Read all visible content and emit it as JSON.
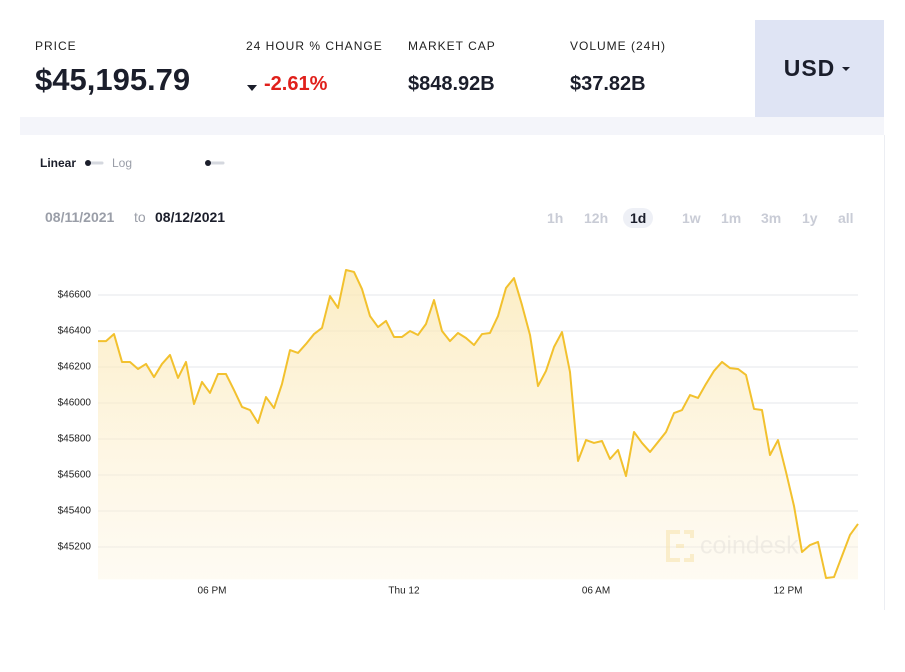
{
  "header": {
    "stats": [
      {
        "label": "PRICE",
        "value": "$45,195.79"
      },
      {
        "label": "24 HOUR % CHANGE",
        "value": "-2.61%"
      },
      {
        "label": "MARKET CAP",
        "value": "$848.92B"
      },
      {
        "label": "VOLUME (24H)",
        "value": "$37.82B"
      }
    ],
    "currency": "USD"
  },
  "controls": {
    "scale": "Linear",
    "scale_alt": "Log",
    "date_from": "08/11/2021",
    "date_sep": "to",
    "date_to": "08/12/2021",
    "ranges": [
      "1h",
      "12h",
      "1d",
      "1w",
      "1m",
      "3m",
      "1y",
      "all"
    ],
    "selected_range": 2
  },
  "chart_data": {
    "type": "line",
    "color": "#f2c12e",
    "watermark": "coindesk",
    "x": [
      14.4375,
      14.6875,
      14.9375,
      15.1875,
      15.4375,
      15.6875,
      15.9375,
      16.1875,
      16.4375,
      16.6875,
      16.9375,
      17.1875,
      17.4375,
      17.6875,
      17.9375,
      18.1875,
      18.4375,
      18.6875,
      18.9375,
      19.1875,
      19.4375,
      19.6875,
      19.9375,
      20.1875,
      20.4375,
      20.6875,
      20.9375,
      21.1875,
      21.4375,
      21.6875,
      21.9375,
      22.1875,
      22.4375,
      22.6875,
      22.9375,
      23.1875,
      23.4375,
      23.6875,
      23.9375,
      24.1875,
      24.4375,
      24.6875,
      24.9375,
      25.1875,
      25.4375,
      25.6875,
      25.9375,
      26.1875,
      26.4375,
      26.6875,
      26.9375,
      27.1875,
      27.4375,
      27.6875,
      27.9375,
      28.1875,
      28.4375,
      28.6875,
      28.9375,
      29.1875,
      29.4375,
      29.6875,
      29.9375,
      30.1875,
      30.4375,
      30.6875,
      30.9375,
      31.1875,
      31.4375,
      31.6875,
      31.9375,
      32.1875,
      32.4375,
      32.6875,
      32.9375,
      33.1875,
      33.4375,
      33.6875,
      33.9375,
      34.1875,
      34.4375,
      34.6875,
      34.9375,
      35.1875,
      35.4375,
      35.6875,
      35.9375,
      36.1875,
      36.4375,
      36.6875,
      36.9375,
      37.1875,
      37.4375,
      37.6875,
      37.9375,
      38.1875
    ],
    "values": [
      46344,
      46344,
      46383,
      46228,
      46228,
      46189,
      46217,
      46144,
      46217,
      46267,
      46139,
      46228,
      45994,
      46117,
      46056,
      46161,
      46161,
      46072,
      45978,
      45961,
      45889,
      46033,
      45972,
      46106,
      46294,
      46278,
      46328,
      46383,
      46417,
      46594,
      46528,
      46739,
      46728,
      46633,
      46483,
      46422,
      46456,
      46367,
      46367,
      46400,
      46378,
      46439,
      46572,
      46400,
      46344,
      46389,
      46361,
      46322,
      46383,
      46389,
      46483,
      46639,
      46694,
      46544,
      46378,
      46094,
      46178,
      46311,
      46394,
      46172,
      45678,
      45794,
      45778,
      45789,
      45689,
      45739,
      45594,
      45839,
      45778,
      45728,
      45783,
      45839,
      45944,
      45961,
      46044,
      46028,
      46106,
      46178,
      46228,
      46194,
      46189,
      46156,
      45967,
      45961,
      45711,
      45794,
      45617,
      45428,
      45172,
      45211,
      45228,
      45028,
      45033,
      45150,
      45267,
      45328
    ],
    "xlim": [
      14.4375,
      38.1875
    ],
    "xticks": [
      {
        "value": 18,
        "label": "06 PM"
      },
      {
        "value": 24,
        "label": "Thu 12"
      },
      {
        "value": 30,
        "label": "06 AM"
      },
      {
        "value": 36,
        "label": "12 PM"
      }
    ],
    "ylim": [
      45020,
      46800
    ],
    "yticks": [
      {
        "value": 45200,
        "label": "$45200"
      },
      {
        "value": 45400,
        "label": "$45400"
      },
      {
        "value": 45600,
        "label": "$45600"
      },
      {
        "value": 45800,
        "label": "$45800"
      },
      {
        "value": 46000,
        "label": "$46000"
      },
      {
        "value": 46200,
        "label": "$46200"
      },
      {
        "value": 46400,
        "label": "$46400"
      },
      {
        "value": 46600,
        "label": "$46600"
      }
    ],
    "grid": true
  }
}
